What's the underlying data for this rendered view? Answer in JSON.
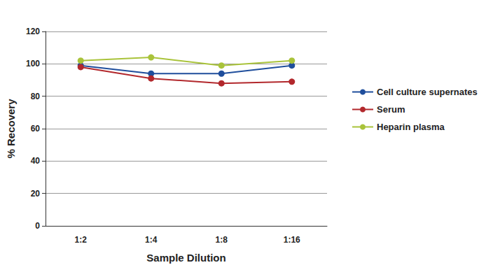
{
  "chart_data": {
    "type": "line",
    "x_label": "Sample Dilution",
    "y_label": "% Recovery",
    "categories": [
      "1:2",
      "1:4",
      "1:8",
      "1:16"
    ],
    "series": [
      {
        "name": "Cell culture supernates",
        "color": "#1f4e9c",
        "values": [
          99,
          94,
          94,
          99
        ]
      },
      {
        "name": "Serum",
        "color": "#b2282c",
        "values": [
          98,
          91,
          88,
          89
        ]
      },
      {
        "name": "Heparin plasma",
        "color": "#a9c33a",
        "values": [
          102,
          104,
          99,
          102
        ]
      }
    ],
    "ylim": [
      0,
      120
    ],
    "yticks": [
      0,
      20,
      40,
      60,
      80,
      100,
      120
    ],
    "grid": true,
    "legend": "right",
    "marker": "circle"
  }
}
